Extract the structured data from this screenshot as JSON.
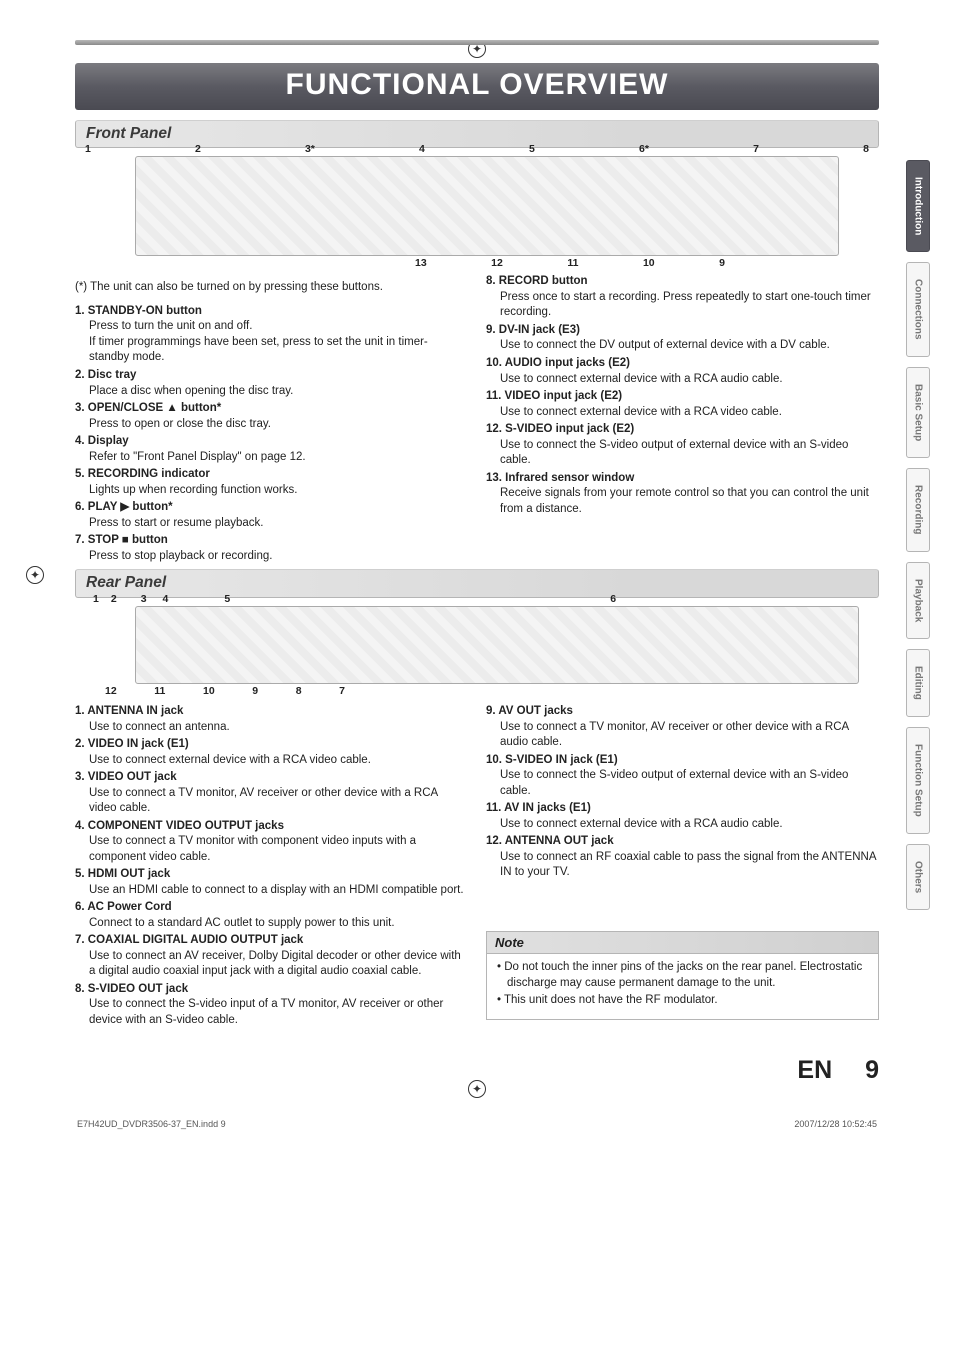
{
  "title": "FUNCTIONAL OVERVIEW",
  "tabs": [
    "Introduction",
    "Connections",
    "Basic Setup",
    "Recording",
    "Playback",
    "Editing",
    "Function Setup",
    "Others"
  ],
  "active_tab_index": 0,
  "front_panel": {
    "header": "Front Panel",
    "top_labels": [
      "1",
      "2",
      "3*",
      "4",
      "5",
      "6*",
      "7",
      "8"
    ],
    "bottom_labels": [
      "13",
      "12",
      "11",
      "10",
      "9"
    ],
    "aster_note": "(*) The unit can also be turned on by pressing these buttons.",
    "left": [
      {
        "n": "1.",
        "t": "STANDBY-ON button",
        "d": "Press to turn the unit on and off.\nIf timer programmings have been set, press to set the unit in timer-standby mode."
      },
      {
        "n": "2.",
        "t": "Disc tray",
        "d": "Place a disc when opening the disc tray."
      },
      {
        "n": "3.",
        "t": "OPEN/CLOSE ▲ button*",
        "d": "Press to open or close the disc tray."
      },
      {
        "n": "4.",
        "t": "Display",
        "d": "Refer to \"Front Panel Display\" on page 12."
      },
      {
        "n": "5.",
        "t": "RECORDING indicator",
        "d": "Lights up when recording function works."
      },
      {
        "n": "6.",
        "t": "PLAY ▶ button*",
        "d": "Press to start or resume playback."
      },
      {
        "n": "7.",
        "t": "STOP ■ button",
        "d": "Press to stop playback or recording."
      }
    ],
    "right": [
      {
        "n": "8.",
        "t": "RECORD button",
        "d": "Press once to start a recording. Press repeatedly to start one-touch timer recording."
      },
      {
        "n": "9.",
        "t": "DV-IN jack (E3)",
        "d": "Use to connect the DV output of external device with a DV cable."
      },
      {
        "n": "10.",
        "t": "AUDIO input jacks (E2)",
        "d": "Use to connect external device with a RCA audio cable."
      },
      {
        "n": "11.",
        "t": "VIDEO input jack (E2)",
        "d": "Use to connect external device with a RCA video cable."
      },
      {
        "n": "12.",
        "t": "S-VIDEO input jack (E2)",
        "d": "Use to connect the S-video output of external device with an S-video cable."
      },
      {
        "n": "13.",
        "t": "Infrared sensor window",
        "d": "Receive signals from your remote control so that you can control the unit from a distance."
      }
    ]
  },
  "rear_panel": {
    "header": "Rear Panel",
    "top_labels": [
      "1",
      "2",
      "3",
      "4",
      "5",
      "6"
    ],
    "bottom_labels": [
      "12",
      "11",
      "10",
      "9",
      "8",
      "7"
    ],
    "left": [
      {
        "n": "1.",
        "t": "ANTENNA IN jack",
        "d": "Use to connect an antenna."
      },
      {
        "n": "2.",
        "t": "VIDEO IN jack (E1)",
        "d": "Use to connect external device with a RCA video cable."
      },
      {
        "n": "3.",
        "t": "VIDEO OUT jack",
        "d": "Use to connect a TV monitor, AV receiver or other device with a RCA video cable."
      },
      {
        "n": "4.",
        "t": "COMPONENT VIDEO OUTPUT jacks",
        "d": "Use to connect a TV monitor with component video inputs with a component video cable."
      },
      {
        "n": "5.",
        "t": "HDMI OUT jack",
        "d": "Use an HDMI cable to connect to a display with an HDMI compatible port."
      },
      {
        "n": "6.",
        "t": "AC Power Cord",
        "d": "Connect to a standard AC outlet to supply power to this unit."
      },
      {
        "n": "7.",
        "t": "COAXIAL DIGITAL AUDIO OUTPUT jack",
        "d": "Use to connect an AV receiver, Dolby Digital decoder or other device with a digital audio coaxial input jack with a digital audio coaxial cable."
      },
      {
        "n": "8.",
        "t": "S-VIDEO OUT jack",
        "d": "Use to connect the S-video input of a TV monitor, AV receiver or other device with an S-video cable."
      }
    ],
    "right": [
      {
        "n": "9.",
        "t": "AV OUT jacks",
        "d": "Use to connect a TV monitor, AV receiver or other device with a RCA audio cable."
      },
      {
        "n": "10.",
        "t": "S-VIDEO IN jack (E1)",
        "d": "Use to connect the S-video output of external device with an S-video cable."
      },
      {
        "n": "11.",
        "t": "AV IN jacks (E1)",
        "d": "Use to connect external device with a RCA audio cable."
      },
      {
        "n": "12.",
        "t": "ANTENNA OUT jack",
        "d": "Use to connect an RF coaxial cable to pass the signal from the ANTENNA IN to your TV."
      }
    ]
  },
  "note": {
    "head": "Note",
    "items": [
      "Do not touch the inner pins of the jacks on the rear panel. Electrostatic discharge may cause permanent damage to the unit.",
      "This unit does not have the RF modulator."
    ]
  },
  "footer": {
    "lang": "EN",
    "page": "9",
    "file": "E7H42UD_DVDR3506-37_EN.indd   9",
    "stamp": "2007/12/28   10:52:45"
  },
  "colors": {
    "title_bg": "#5a5a62",
    "title_fg": "#ffffff",
    "section_bg": "#e0e0e0",
    "section_border": "#b5b5b5",
    "text": "#222222",
    "tab_inactive": "#777777"
  }
}
